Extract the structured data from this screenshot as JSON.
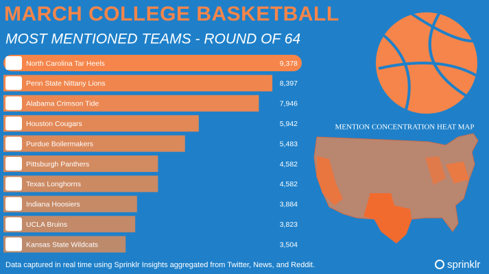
{
  "chart_data": {
    "type": "bar",
    "orientation": "horizontal",
    "title": "MARCH COLLEGE BASKETBALL",
    "subtitle": "MOST MENTIONED TEAMS - ROUND OF 64",
    "categories": [
      "North Carolina Tar Heels",
      "Penn State Nittany Lions",
      "Alabama Crimson Tide",
      "Houston Cougars",
      "Purdue Boilermakers",
      "Pittsburgh Panthers",
      "Texas Longhorns",
      "Indiana Hoosiers",
      "UCLA Bruins",
      "Kansas State Wildcats"
    ],
    "values": [
      9378,
      8397,
      7946,
      5942,
      5483,
      4582,
      4582,
      3884,
      3823,
      3504
    ],
    "value_labels": [
      "9,378",
      "8,397",
      "7,946",
      "5,942",
      "5,483",
      "4,582",
      "4,582",
      "3,884",
      "3,823",
      "3,504"
    ],
    "colors": [
      "#f5854a",
      "#f0864d",
      "#ea8752",
      "#e28856",
      "#da895b",
      "#d28a60",
      "#cc8a63",
      "#c68a67",
      "#c28a69",
      "#bd8a6c"
    ]
  },
  "map": {
    "title": "MENTION CONCENTRATION HEAT MAP"
  },
  "footer": {
    "note": "Data captured in real time using Sprinklr Insights aggregated from Twitter, News, and Reddit.",
    "brand": "sprinklr"
  }
}
